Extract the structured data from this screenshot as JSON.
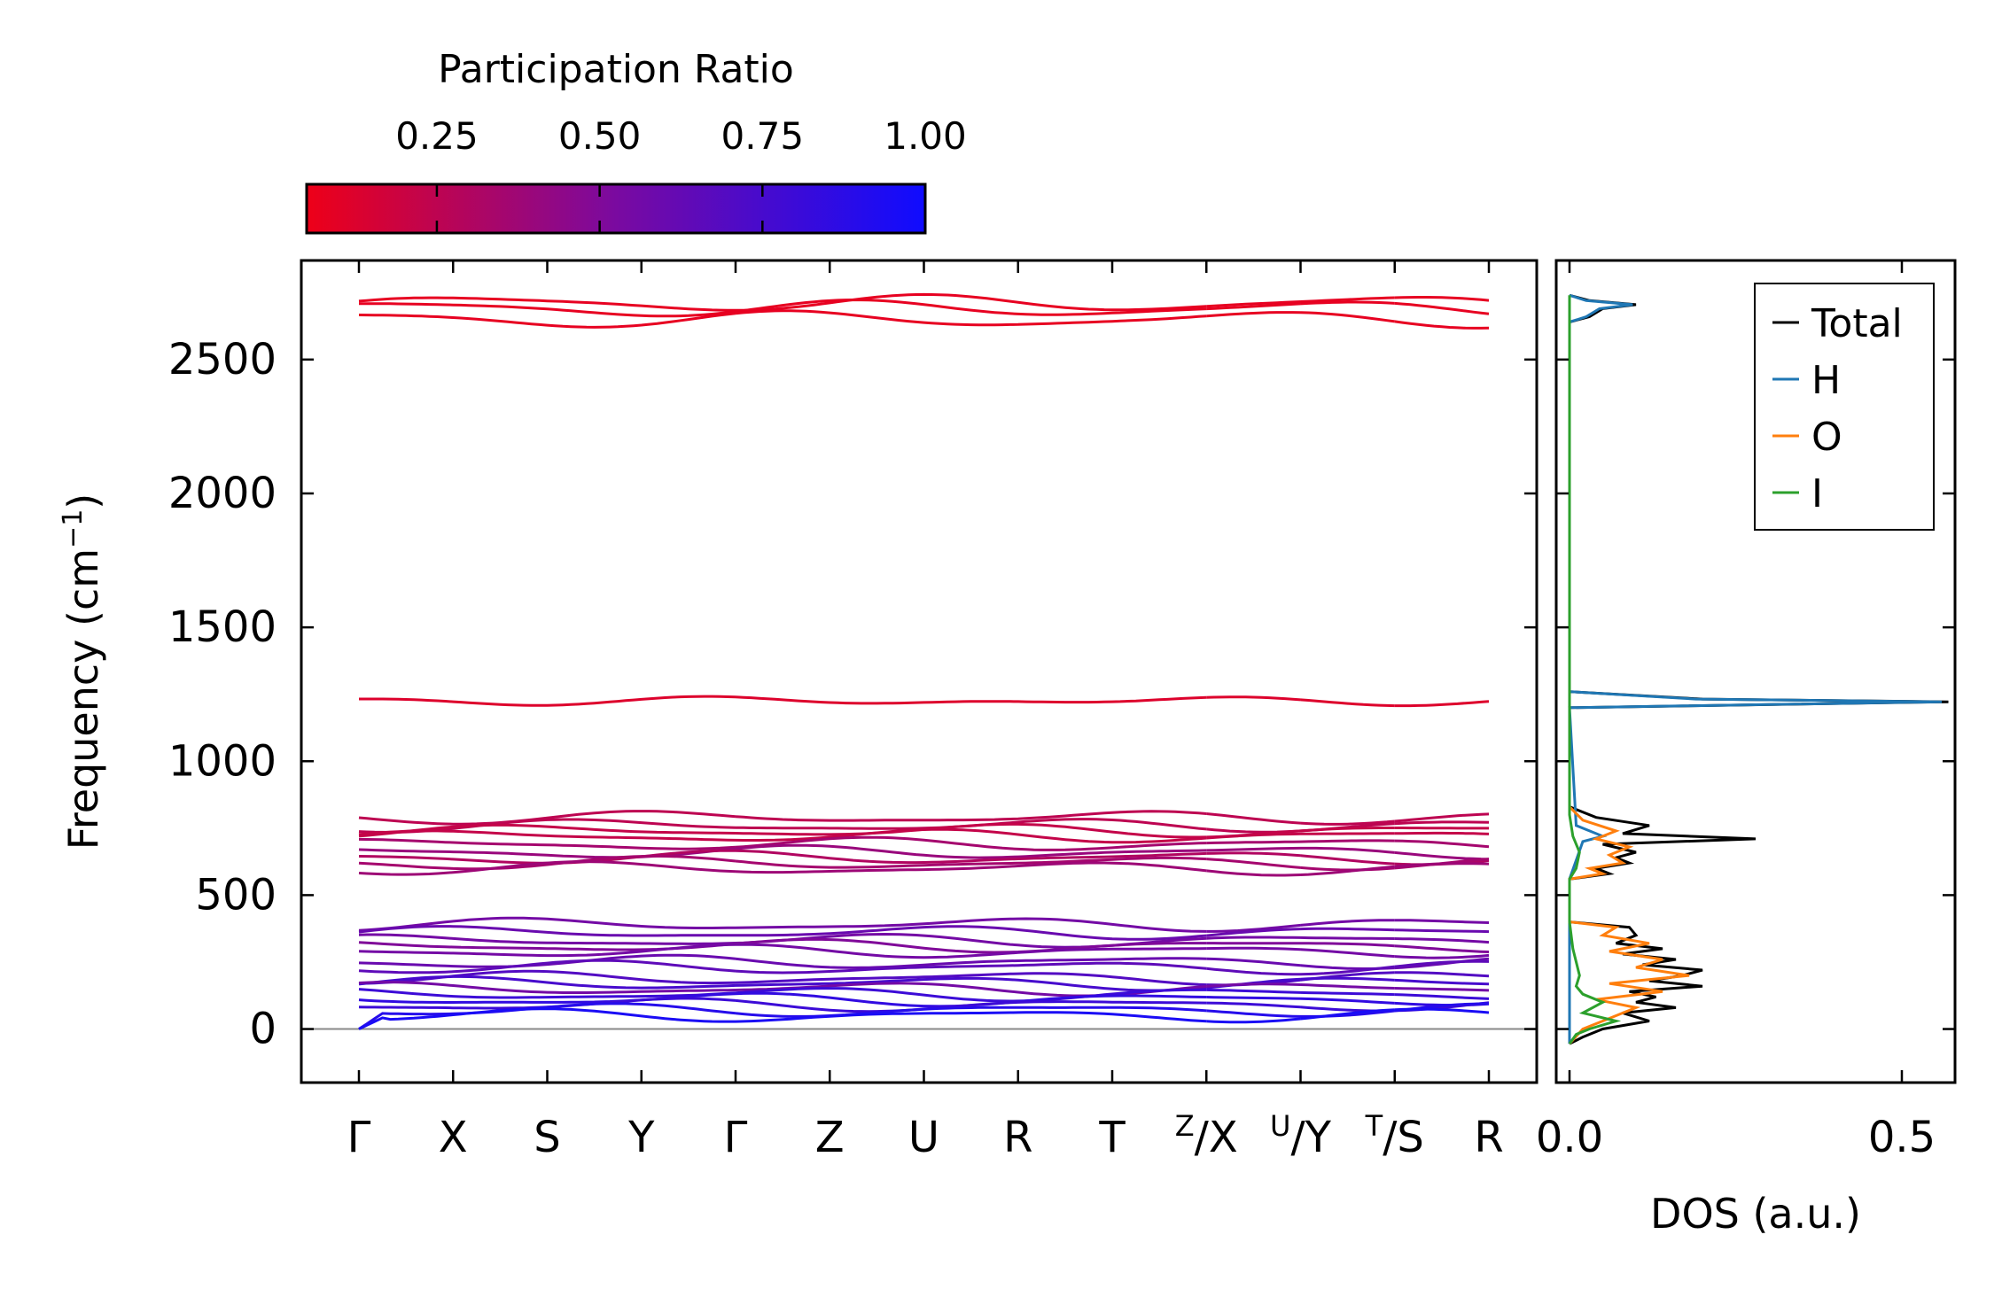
{
  "chart_data": [
    {
      "type": "line",
      "title": "",
      "ylabel": "Frequency (cm",
      "ylabel_sup": "−1",
      "ylabel_end": ")",
      "ylim": [
        -200,
        2870
      ],
      "yticks": [
        0,
        500,
        1000,
        1500,
        2000,
        2500
      ],
      "path_labels": [
        {
          "main": "Γ"
        },
        {
          "main": "X"
        },
        {
          "main": "S"
        },
        {
          "main": "Y"
        },
        {
          "main": "Γ"
        },
        {
          "main": "Z"
        },
        {
          "main": "U"
        },
        {
          "main": "R"
        },
        {
          "main": "T"
        },
        {
          "sup": "Z",
          "main": "/X"
        },
        {
          "sup": "U",
          "main": "/Y"
        },
        {
          "sup": "T",
          "main": "/S"
        },
        {
          "main": "R"
        }
      ],
      "segment_breaks": [
        4,
        9,
        10,
        11
      ],
      "band_levels": [
        {
          "f": 2710,
          "pr": 0.08
        },
        {
          "f": 2690,
          "pr": 0.08
        },
        {
          "f": 2650,
          "pr": 0.08
        },
        {
          "f": 1225,
          "pr": 0.12
        },
        {
          "f": 790,
          "pr": 0.25
        },
        {
          "f": 760,
          "pr": 0.25
        },
        {
          "f": 740,
          "pr": 0.22
        },
        {
          "f": 720,
          "pr": 0.22
        },
        {
          "f": 690,
          "pr": 0.35
        },
        {
          "f": 660,
          "pr": 0.4
        },
        {
          "f": 640,
          "pr": 0.3
        },
        {
          "f": 620,
          "pr": 0.35
        },
        {
          "f": 600,
          "pr": 0.38
        },
        {
          "f": 390,
          "pr": 0.55
        },
        {
          "f": 360,
          "pr": 0.6
        },
        {
          "f": 330,
          "pr": 0.55
        },
        {
          "f": 310,
          "pr": 0.5
        },
        {
          "f": 290,
          "pr": 0.55
        },
        {
          "f": 250,
          "pr": 0.6
        },
        {
          "f": 230,
          "pr": 0.65
        },
        {
          "f": 190,
          "pr": 0.7
        },
        {
          "f": 170,
          "pr": 0.75
        },
        {
          "f": 150,
          "pr": 0.55
        },
        {
          "f": 130,
          "pr": 0.8
        },
        {
          "f": 110,
          "pr": 0.85
        },
        {
          "f": 90,
          "pr": 0.8
        },
        {
          "f": 70,
          "pr": 0.9
        },
        {
          "f": 50,
          "pr": 0.95
        }
      ],
      "colorbar": {
        "label": "Participation Ratio",
        "range": [
          0.05,
          1.0
        ],
        "ticks": [
          0.25,
          0.5,
          0.75,
          1.0
        ],
        "tick_labels": [
          "0.25",
          "0.50",
          "0.75",
          "1.00"
        ],
        "color_low": "#ee0018",
        "color_mid": "#7a0aa0",
        "color_high": "#0f0cff"
      }
    },
    {
      "type": "line",
      "xlabel": "DOS (a.u.)",
      "xlim": [
        -0.02,
        0.58
      ],
      "xticks": [
        0.0,
        0.5
      ],
      "xtick_labels": [
        "0.0",
        "0.5"
      ],
      "ylim": [
        -200,
        2870
      ],
      "legend": {
        "position": "top-right"
      },
      "series": [
        {
          "name": "Total",
          "color": "#000000",
          "points": [
            [
              -55,
              0.0
            ],
            [
              -30,
              0.02
            ],
            [
              0,
              0.05
            ],
            [
              30,
              0.12
            ],
            [
              60,
              0.08
            ],
            [
              80,
              0.16
            ],
            [
              100,
              0.1
            ],
            [
              120,
              0.13
            ],
            [
              140,
              0.09
            ],
            [
              160,
              0.2
            ],
            [
              180,
              0.12
            ],
            [
              200,
              0.17
            ],
            [
              220,
              0.2
            ],
            [
              240,
              0.11
            ],
            [
              260,
              0.16
            ],
            [
              280,
              0.08
            ],
            [
              300,
              0.14
            ],
            [
              320,
              0.07
            ],
            [
              350,
              0.1
            ],
            [
              380,
              0.09
            ],
            [
              400,
              0.0
            ],
            [
              560,
              0.0
            ],
            [
              580,
              0.06
            ],
            [
              600,
              0.04
            ],
            [
              620,
              0.09
            ],
            [
              640,
              0.07
            ],
            [
              660,
              0.1
            ],
            [
              690,
              0.05
            ],
            [
              710,
              0.28
            ],
            [
              730,
              0.08
            ],
            [
              760,
              0.12
            ],
            [
              790,
              0.04
            ],
            [
              830,
              0.0
            ],
            [
              1200,
              0.0
            ],
            [
              1222,
              0.57
            ],
            [
              1232,
              0.2
            ],
            [
              1260,
              0.0
            ],
            [
              2640,
              0.0
            ],
            [
              2660,
              0.03
            ],
            [
              2690,
              0.05
            ],
            [
              2705,
              0.1
            ],
            [
              2720,
              0.03
            ],
            [
              2740,
              0.0
            ]
          ]
        },
        {
          "name": "H",
          "color": "#1f77b4",
          "points": [
            [
              -55,
              0.0
            ],
            [
              400,
              0.0
            ],
            [
              560,
              0.0
            ],
            [
              700,
              0.02
            ],
            [
              720,
              0.05
            ],
            [
              760,
              0.01
            ],
            [
              1200,
              0.0
            ],
            [
              1222,
              0.56
            ],
            [
              1232,
              0.19
            ],
            [
              1260,
              0.0
            ],
            [
              2640,
              0.0
            ],
            [
              2660,
              0.025
            ],
            [
              2690,
              0.045
            ],
            [
              2705,
              0.095
            ],
            [
              2720,
              0.025
            ],
            [
              2740,
              0.0
            ]
          ]
        },
        {
          "name": "O",
          "color": "#ff7f0e",
          "points": [
            [
              -55,
              0.0
            ],
            [
              0,
              0.02
            ],
            [
              40,
              0.06
            ],
            [
              80,
              0.1
            ],
            [
              110,
              0.04
            ],
            [
              140,
              0.14
            ],
            [
              170,
              0.06
            ],
            [
              200,
              0.18
            ],
            [
              230,
              0.1
            ],
            [
              260,
              0.14
            ],
            [
              290,
              0.06
            ],
            [
              320,
              0.12
            ],
            [
              350,
              0.05
            ],
            [
              380,
              0.07
            ],
            [
              400,
              0.0
            ],
            [
              560,
              0.0
            ],
            [
              580,
              0.05
            ],
            [
              600,
              0.03
            ],
            [
              620,
              0.08
            ],
            [
              650,
              0.06
            ],
            [
              680,
              0.09
            ],
            [
              710,
              0.04
            ],
            [
              740,
              0.07
            ],
            [
              780,
              0.02
            ],
            [
              830,
              0.0
            ],
            [
              1200,
              0.0
            ],
            [
              1260,
              0.0
            ]
          ]
        },
        {
          "name": "I",
          "color": "#2ca02c",
          "points": [
            [
              -55,
              0.0
            ],
            [
              -20,
              0.01
            ],
            [
              0,
              0.03
            ],
            [
              30,
              0.07
            ],
            [
              60,
              0.02
            ],
            [
              100,
              0.05
            ],
            [
              130,
              0.02
            ],
            [
              160,
              0.01
            ],
            [
              200,
              0.015
            ],
            [
              300,
              0.005
            ],
            [
              400,
              0.0
            ],
            [
              560,
              0.0
            ],
            [
              600,
              0.01
            ],
            [
              660,
              0.015
            ],
            [
              720,
              0.005
            ],
            [
              800,
              0.0
            ],
            [
              1260,
              0.0
            ],
            [
              2740,
              0.0
            ]
          ]
        }
      ]
    }
  ]
}
